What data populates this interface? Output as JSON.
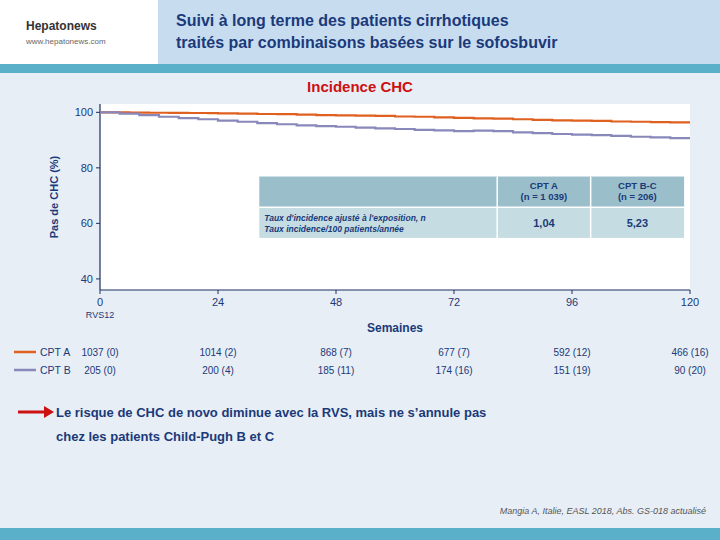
{
  "chart_data": {
    "type": "step",
    "title_lines": [
      "Suivi à long terme des patients cirrhotiques",
      "traités par combinaisons basées sur le sofosbuvir"
    ],
    "header_texts": [
      "Hepatonews",
      "www.hepatonews.com"
    ],
    "subtitle": "Incidence CHC",
    "ylabel": "Pas de CHC (%)",
    "xlabel": "Semaines",
    "xlim": [
      0,
      120
    ],
    "ylim": [
      36,
      103
    ],
    "xticks": [
      0,
      24,
      48,
      72,
      96,
      120
    ],
    "yticks": [
      40,
      60,
      80,
      100
    ],
    "series": [
      {
        "name": "CPT A",
        "color": "#E06020",
        "x": [
          0,
          6,
          10,
          14,
          18,
          22,
          24,
          28,
          32,
          36,
          40,
          44,
          48,
          52,
          56,
          60,
          64,
          68,
          72,
          76,
          80,
          84,
          88,
          92,
          96,
          100,
          104,
          108,
          112,
          116,
          120
        ],
        "values": [
          100,
          99.9,
          99.85,
          99.8,
          99.75,
          99.7,
          99.6,
          99.5,
          99.4,
          99.35,
          99.2,
          99.0,
          98.9,
          98.8,
          98.7,
          98.5,
          98.4,
          98.2,
          98.0,
          97.8,
          97.7,
          97.5,
          97.3,
          97.1,
          97.0,
          96.9,
          96.7,
          96.6,
          96.5,
          96.4,
          96.3
        ],
        "at_risk": [
          "1037 (0)",
          "1014 (2)",
          "868 (7)",
          "677 (7)",
          "592 (12)",
          "466 (16)"
        ]
      },
      {
        "name": "CPT B",
        "color": "#8888BB",
        "x": [
          0,
          4,
          8,
          12,
          16,
          20,
          24,
          28,
          32,
          36,
          40,
          44,
          48,
          52,
          56,
          60,
          64,
          68,
          72,
          76,
          80,
          84,
          88,
          92,
          96,
          100,
          104,
          108,
          112,
          116,
          120
        ],
        "values": [
          100,
          99.5,
          99.0,
          98.4,
          97.9,
          97.5,
          97.0,
          96.6,
          96.1,
          95.7,
          95.3,
          95.0,
          94.8,
          94.5,
          94.2,
          94.0,
          93.7,
          93.5,
          93.2,
          93.4,
          93.2,
          92.8,
          92.5,
          92.2,
          92.0,
          91.8,
          91.5,
          91.2,
          91.0,
          90.7,
          90.4
        ],
        "at_risk": [
          "205 (0)",
          "200 (4)",
          "185 (11)",
          "174 (16)",
          "151 (19)",
          "90 (20)"
        ]
      }
    ],
    "annotations": [
      {
        "text": "RVS12",
        "x": 0
      }
    ],
    "inset_table": {
      "columns": [
        "CPT A\n(n = 1 039)",
        "CPT B-C\n(n = 206)"
      ],
      "row_label": [
        "Taux d'incidence ajusté à l'exposition, n",
        "Taux incidence/100 patients/année"
      ],
      "row_values": [
        "1,04",
        "5,23"
      ]
    },
    "notes": [
      " Le risque de CHC de novo diminue avec la RVS, mais ne s’annule pas",
      " chez les patients Child-Pugh B et C"
    ],
    "citation": "Mangia A, Italie, EASL 2018, Abs. GS-018 actualisé"
  }
}
